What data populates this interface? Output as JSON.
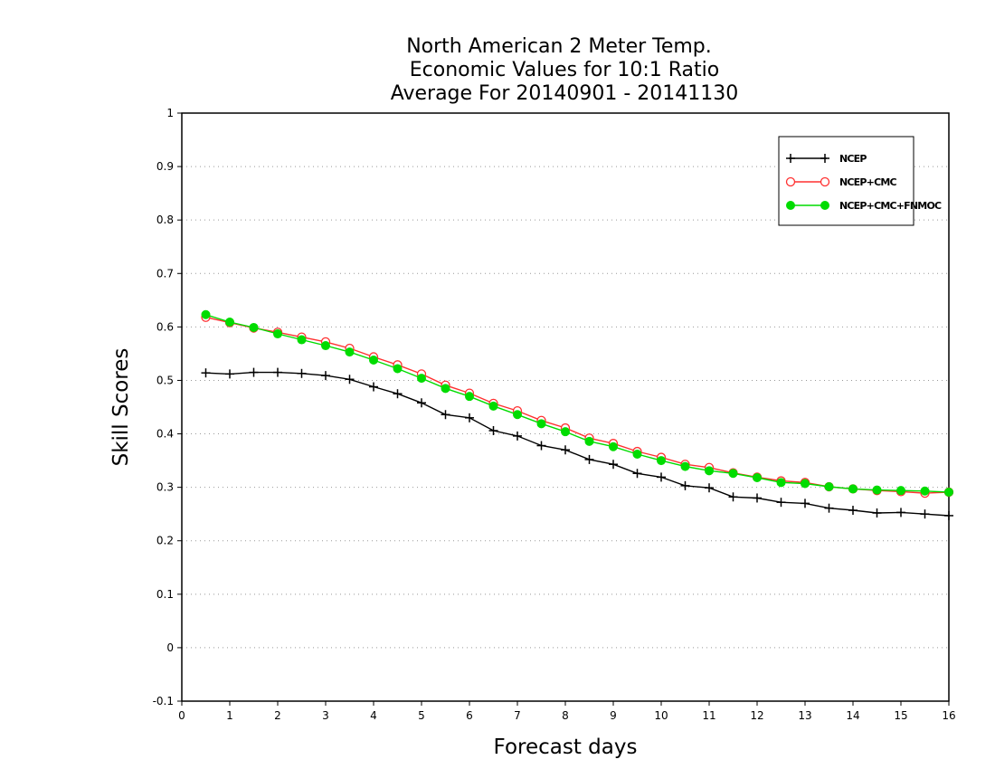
{
  "chart_data": {
    "type": "line",
    "title": [
      "North American 2 Meter Temp.",
      "Economic Values for 10:1 Ratio",
      "Average For 20140901 - 20141130"
    ],
    "xlabel": "Forecast days",
    "ylabel": "Skill Scores",
    "xlim": [
      0,
      16
    ],
    "ylim": [
      -0.1,
      1
    ],
    "xticks": [
      0,
      1,
      2,
      3,
      4,
      5,
      6,
      7,
      8,
      9,
      10,
      11,
      12,
      13,
      14,
      15,
      16
    ],
    "yticks": [
      -0.1,
      0,
      0.1,
      0.2,
      0.3,
      0.4,
      0.5,
      0.6,
      0.7,
      0.8,
      0.9,
      1
    ],
    "ytick_labels": [
      "-0.1",
      "0",
      "0.1",
      "0.2",
      "0.3",
      "0.4",
      "0.5",
      "0.6",
      "0.7",
      "0.8",
      "0.9",
      "1"
    ],
    "grid": "horizontal dotted",
    "legend_position": "top-right",
    "x": [
      0.5,
      1,
      1.5,
      2,
      2.5,
      3,
      3.5,
      4,
      4.5,
      5,
      5.5,
      6,
      6.5,
      7,
      7.5,
      8,
      8.5,
      9,
      9.5,
      10,
      10.5,
      11,
      11.5,
      12,
      12.5,
      13,
      13.5,
      14,
      14.5,
      15,
      15.5,
      16
    ],
    "series": [
      {
        "name": "NCEP",
        "color": "#000000",
        "marker": "plus",
        "values": [
          0.514,
          0.512,
          0.515,
          0.515,
          0.513,
          0.509,
          0.502,
          0.488,
          0.475,
          0.458,
          0.436,
          0.43,
          0.406,
          0.396,
          0.378,
          0.37,
          0.352,
          0.343,
          0.326,
          0.319,
          0.303,
          0.299,
          0.282,
          0.28,
          0.272,
          0.27,
          0.261,
          0.257,
          0.252,
          0.253,
          0.25,
          0.247
        ]
      },
      {
        "name": "NCEP+CMC",
        "color": "#ff3030",
        "marker": "open-circle",
        "values": [
          0.618,
          0.608,
          0.598,
          0.59,
          0.581,
          0.572,
          0.56,
          0.544,
          0.529,
          0.512,
          0.491,
          0.476,
          0.457,
          0.443,
          0.425,
          0.411,
          0.392,
          0.382,
          0.367,
          0.356,
          0.343,
          0.337,
          0.327,
          0.319,
          0.312,
          0.309,
          0.301,
          0.297,
          0.294,
          0.292,
          0.289,
          0.291
        ]
      },
      {
        "name": "NCEP+CMC+FNMOC",
        "color": "#00dc00",
        "marker": "filled-circle",
        "values": [
          0.623,
          0.609,
          0.599,
          0.587,
          0.576,
          0.565,
          0.553,
          0.538,
          0.522,
          0.504,
          0.485,
          0.47,
          0.452,
          0.436,
          0.419,
          0.404,
          0.386,
          0.376,
          0.362,
          0.35,
          0.339,
          0.331,
          0.326,
          0.318,
          0.309,
          0.307,
          0.301,
          0.297,
          0.295,
          0.294,
          0.293,
          0.291
        ]
      }
    ]
  }
}
